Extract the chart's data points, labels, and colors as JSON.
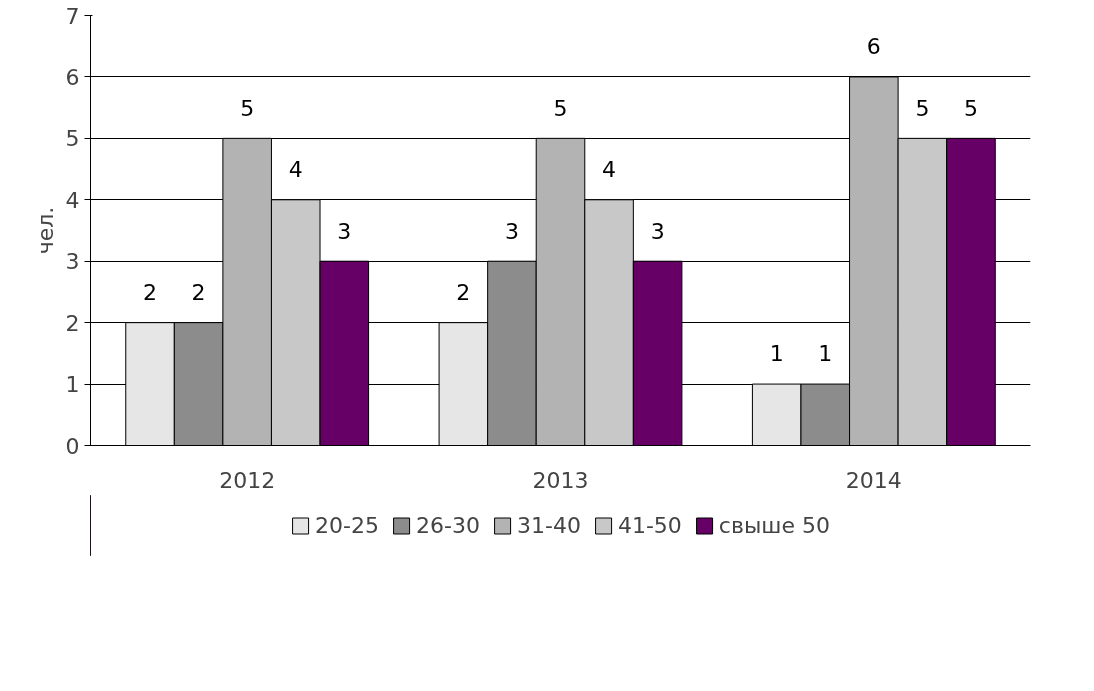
{
  "chart_data": {
    "type": "bar",
    "ylabel": "чел.",
    "categories": [
      "2012",
      "2013",
      "2014"
    ],
    "series": [
      {
        "name": "20-25",
        "color": "#e6e6e6",
        "values": [
          2,
          2,
          1
        ]
      },
      {
        "name": "26-30",
        "color": "#8c8c8c",
        "values": [
          2,
          3,
          1
        ]
      },
      {
        "name": "31-40",
        "color": "#b3b3b3",
        "values": [
          5,
          5,
          6
        ]
      },
      {
        "name": "41-50",
        "color": "#c8c8c8",
        "values": [
          4,
          4,
          5
        ]
      },
      {
        "name": "свыше 50",
        "color": "#660066",
        "values": [
          3,
          3,
          5
        ]
      }
    ],
    "ylim": [
      0,
      7
    ],
    "yticks": [
      0,
      1,
      2,
      3,
      4,
      5,
      6,
      7
    ],
    "grid": "y",
    "legend": "bottom",
    "data_labels": true
  }
}
